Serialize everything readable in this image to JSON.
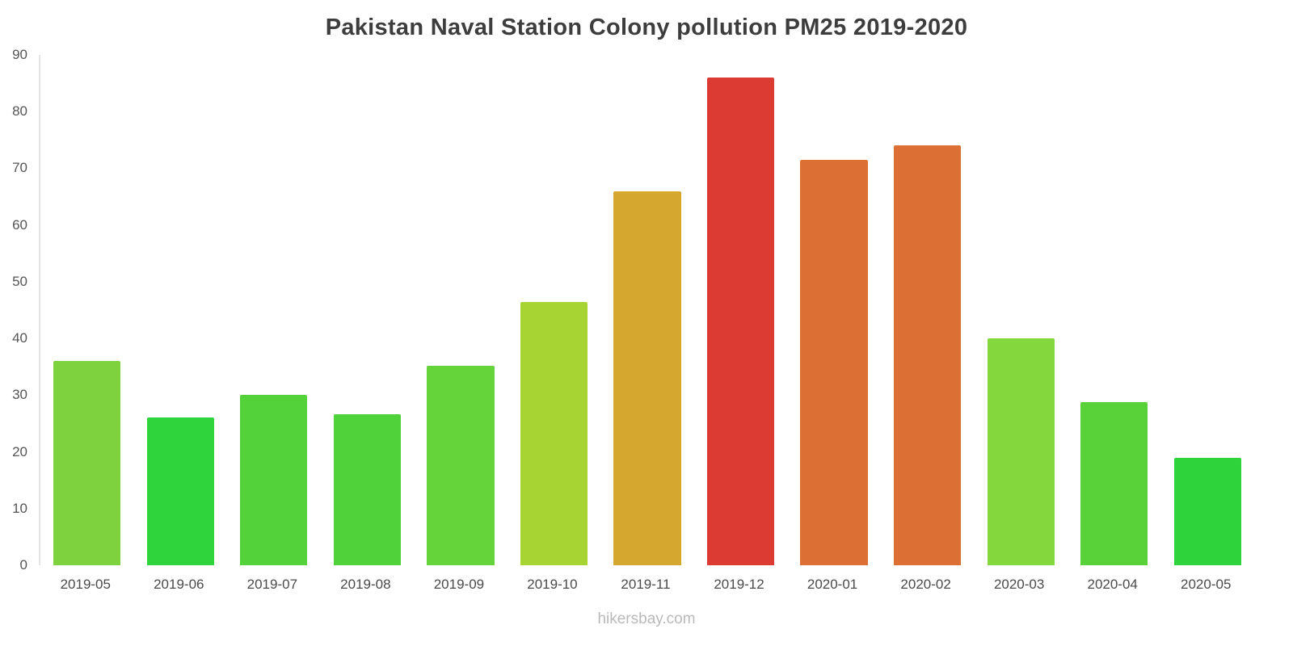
{
  "page": {
    "footer": "hikersbay.com"
  },
  "chart_data": {
    "type": "bar",
    "title": "Pakistan Naval Station Colony pollution PM25 2019-2020",
    "categories": [
      "2019-05",
      "2019-06",
      "2019-07",
      "2019-08",
      "2019-09",
      "2019-10",
      "2019-11",
      "2019-12",
      "2020-01",
      "2020-02",
      "2020-03",
      "2020-04",
      "2020-05"
    ],
    "values": [
      36,
      26,
      30,
      26.7,
      35.2,
      46.4,
      66,
      86,
      71.5,
      74,
      40,
      28.7,
      19
    ],
    "bar_colors": [
      "#7ED23D",
      "#2FD33C",
      "#53D23A",
      "#50D23A",
      "#64D43A",
      "#A8D433",
      "#D6A72E",
      "#DB3B32",
      "#DC7034",
      "#DC7034",
      "#84D73C",
      "#59D23A",
      "#2ED33C"
    ],
    "xlabel": "",
    "ylabel": "",
    "ylim": [
      0,
      90
    ],
    "ytick_step": 10,
    "grid": false,
    "legend": false,
    "axis_color": "#e4e4e4",
    "tick_label_color": "#555555"
  }
}
